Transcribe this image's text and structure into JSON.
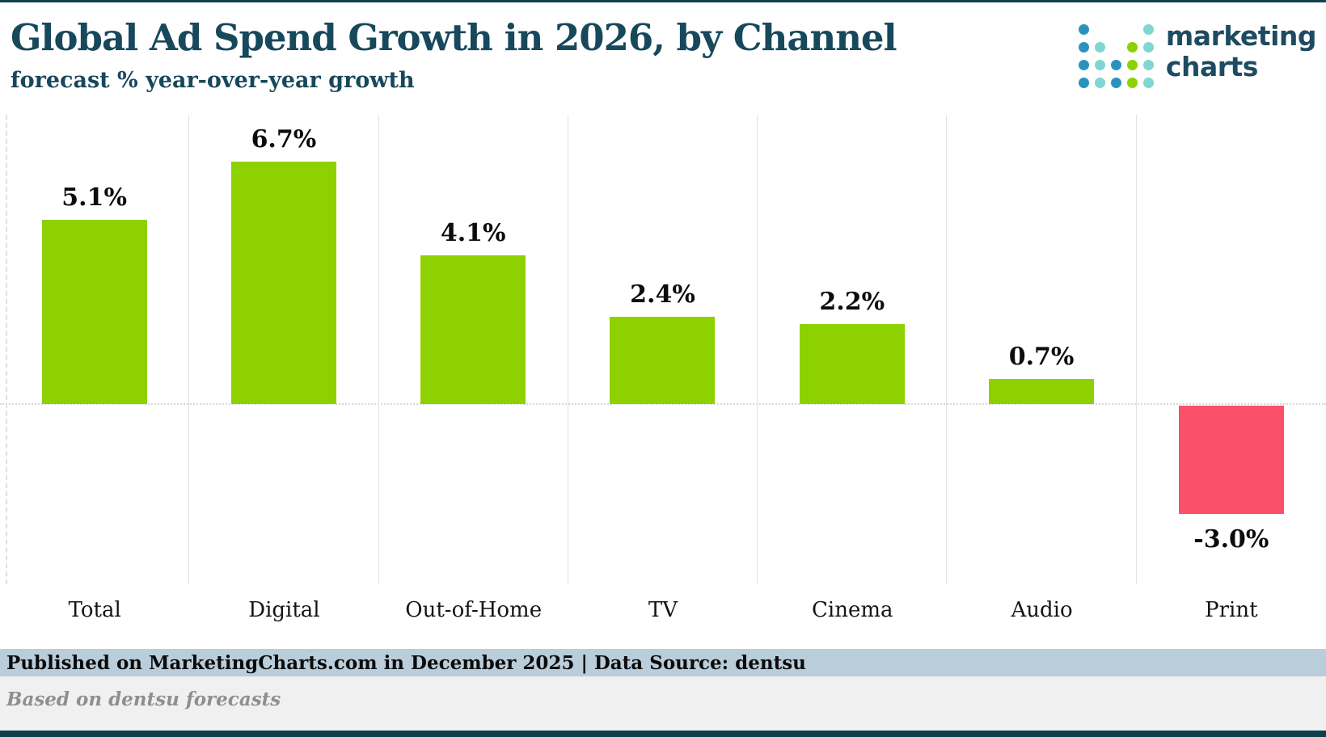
{
  "header": {
    "title": "Global Ad Spend Growth in 2026, by Channel",
    "subtitle": "forecast % year-over-year growth"
  },
  "logo": {
    "wordmark_line1": "marketing",
    "wordmark_line2": "charts",
    "text_color": "#1d4b61",
    "dot_colors": {
      "blue": "#2a93bd",
      "teal": "#7fd6d2",
      "green": "#8ed100"
    },
    "dot_grid": [
      [
        "blue",
        null,
        null,
        null,
        "teal"
      ],
      [
        "blue",
        "teal",
        null,
        "green",
        "teal"
      ],
      [
        "blue",
        "teal",
        "blue",
        "green",
        "teal"
      ],
      [
        "blue",
        "teal",
        "blue",
        "green",
        "teal"
      ]
    ]
  },
  "chart_data": {
    "type": "bar",
    "title": "Global Ad Spend Growth in 2026, by Channel",
    "subtitle": "forecast % year-over-year growth",
    "categories": [
      "Total",
      "Digital",
      "Out-of-Home",
      "TV",
      "Cinema",
      "Audio",
      "Print"
    ],
    "values": [
      5.1,
      6.7,
      4.1,
      2.4,
      2.2,
      0.7,
      -3.0
    ],
    "labels": [
      "5.1%",
      "6.7%",
      "4.1%",
      "2.4%",
      "2.2%",
      "0.7%",
      "-3.0%"
    ],
    "xlabel": "",
    "ylabel": "",
    "ylim": [
      -5,
      8.2
    ],
    "legend": "none",
    "grid": "vertical column separators, dotted zero baseline",
    "positive_color": "#8ed100",
    "negative_color": "#fa5069"
  },
  "footer": {
    "published_line": "Published on MarketingCharts.com in December 2025 | Data Source: dentsu",
    "note_line": "Based on dentsu forecasts"
  },
  "colors": {
    "title_text": "#17485c",
    "top_border": "#12414f",
    "bottom_border": "#0e3d4d",
    "published_band_bg": "#b9cdda",
    "note_band_bg": "#f0f0f0",
    "note_text": "#8f8f8f",
    "gridline": "#e3e3e3"
  }
}
